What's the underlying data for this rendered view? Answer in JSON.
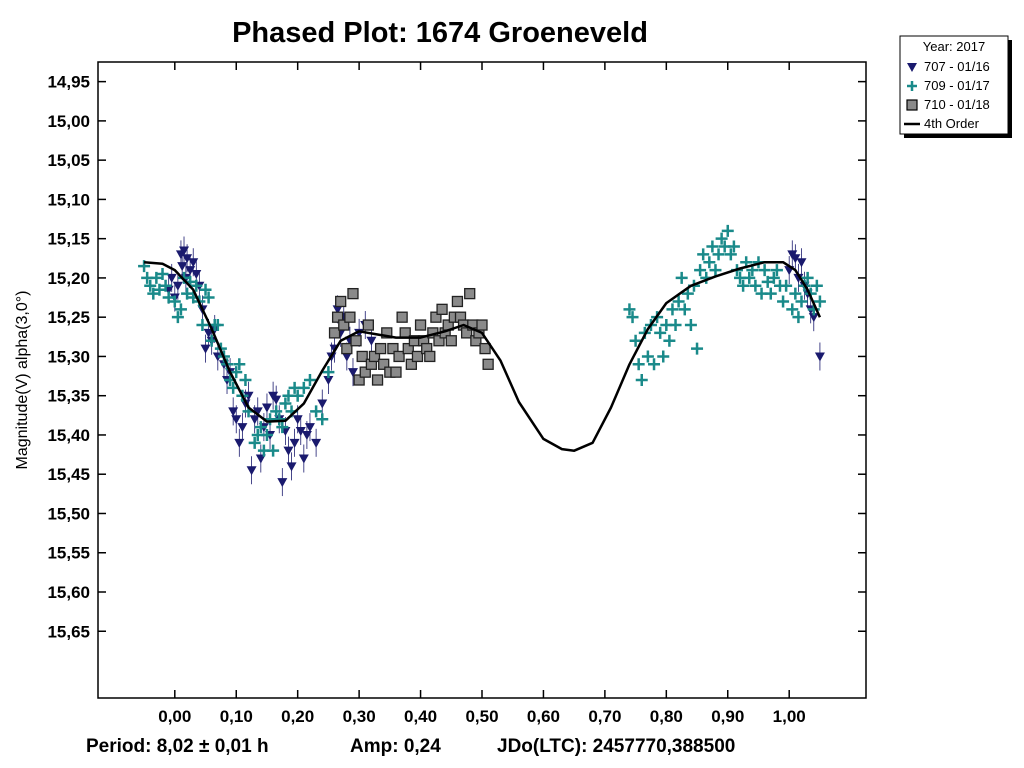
{
  "chart_data": {
    "type": "scatter",
    "title": "Phased Plot: 1674 Groeneveld",
    "ylabel": "Magnitude(V) alpha(3,0°)",
    "xlabel": "",
    "xlim": [
      -0.125,
      1.125
    ],
    "ylim": [
      15.735,
      14.925
    ],
    "y_inverted": true,
    "x_ticks": [
      "0,00",
      "0,10",
      "0,20",
      "0,30",
      "0,40",
      "0,50",
      "0,60",
      "0,70",
      "0,80",
      "0,90",
      "1,00"
    ],
    "x_tick_values": [
      0,
      0.1,
      0.2,
      0.3,
      0.4,
      0.5,
      0.6,
      0.7,
      0.8,
      0.9,
      1.0
    ],
    "y_ticks": [
      "14,95",
      "15,00",
      "15,05",
      "15,10",
      "15,15",
      "15,20",
      "15,25",
      "15,30",
      "15,35",
      "15,40",
      "15,45",
      "15,50",
      "15,55",
      "15,60",
      "15,65"
    ],
    "y_tick_values": [
      14.95,
      15.0,
      15.05,
      15.1,
      15.15,
      15.2,
      15.25,
      15.3,
      15.35,
      15.4,
      15.45,
      15.5,
      15.55,
      15.6,
      15.65
    ],
    "legend": {
      "position": "top-right",
      "title": "Year: 2017",
      "entries": [
        "707 - 01/16",
        "709 - 01/17",
        "710 - 01/18",
        "4th Order"
      ]
    },
    "footer": {
      "period": "Period: 8,02 ± 0,01 h",
      "amplitude": "Amp: 0,24",
      "epoch": "JDo(LTC): 2457770,388500"
    },
    "series": [
      {
        "name": "707 - 01/16",
        "marker": "triangle-down",
        "color": "#1a1a6e",
        "points": [
          [
            -0.01,
            15.215
          ],
          [
            -0.005,
            15.2
          ],
          [
            0.0,
            15.225
          ],
          [
            0.005,
            15.21
          ],
          [
            0.01,
            15.17
          ],
          [
            0.012,
            15.185
          ],
          [
            0.015,
            15.165
          ],
          [
            0.018,
            15.2
          ],
          [
            0.02,
            15.175
          ],
          [
            0.025,
            15.19
          ],
          [
            0.03,
            15.18
          ],
          [
            0.035,
            15.195
          ],
          [
            0.04,
            15.21
          ],
          [
            0.045,
            15.24
          ],
          [
            0.05,
            15.29
          ],
          [
            0.055,
            15.27
          ],
          [
            0.06,
            15.28
          ],
          [
            0.065,
            15.265
          ],
          [
            0.07,
            15.3
          ],
          [
            0.08,
            15.31
          ],
          [
            0.085,
            15.33
          ],
          [
            0.09,
            15.32
          ],
          [
            0.095,
            15.37
          ],
          [
            0.1,
            15.38
          ],
          [
            0.105,
            15.41
          ],
          [
            0.11,
            15.39
          ],
          [
            0.115,
            15.36
          ],
          [
            0.12,
            15.35
          ],
          [
            0.125,
            15.445
          ],
          [
            0.13,
            15.38
          ],
          [
            0.135,
            15.37
          ],
          [
            0.14,
            15.43
          ],
          [
            0.145,
            15.39
          ],
          [
            0.15,
            15.365
          ],
          [
            0.155,
            15.4
          ],
          [
            0.16,
            15.35
          ],
          [
            0.165,
            15.355
          ],
          [
            0.17,
            15.38
          ],
          [
            0.175,
            15.46
          ],
          [
            0.18,
            15.395
          ],
          [
            0.185,
            15.42
          ],
          [
            0.19,
            15.44
          ],
          [
            0.195,
            15.41
          ],
          [
            0.2,
            15.38
          ],
          [
            0.205,
            15.395
          ],
          [
            0.21,
            15.43
          ],
          [
            0.215,
            15.4
          ],
          [
            0.22,
            15.39
          ],
          [
            0.23,
            15.41
          ],
          [
            0.24,
            15.36
          ],
          [
            0.25,
            15.33
          ],
          [
            0.255,
            15.3
          ],
          [
            0.26,
            15.29
          ],
          [
            0.265,
            15.24
          ],
          [
            0.27,
            15.27
          ],
          [
            0.275,
            15.25
          ],
          [
            0.28,
            15.3
          ],
          [
            0.285,
            15.28
          ],
          [
            0.29,
            15.32
          ],
          [
            0.3,
            15.27
          ],
          [
            0.31,
            15.26
          ],
          [
            0.32,
            15.28
          ],
          [
            1.0,
            15.19
          ],
          [
            1.005,
            15.17
          ],
          [
            1.01,
            15.175
          ],
          [
            1.015,
            15.2
          ],
          [
            1.02,
            15.18
          ],
          [
            1.025,
            15.21
          ],
          [
            1.03,
            15.22
          ],
          [
            1.035,
            15.24
          ],
          [
            1.04,
            15.25
          ],
          [
            1.05,
            15.3
          ]
        ]
      },
      {
        "name": "709 - 01/17",
        "marker": "plus",
        "color": "#1a8a8a",
        "points": [
          [
            -0.05,
            15.185
          ],
          [
            -0.045,
            15.2
          ],
          [
            -0.04,
            15.21
          ],
          [
            -0.035,
            15.22
          ],
          [
            -0.03,
            15.2
          ],
          [
            -0.025,
            15.215
          ],
          [
            -0.02,
            15.195
          ],
          [
            -0.015,
            15.21
          ],
          [
            -0.01,
            15.225
          ],
          [
            0.0,
            15.23
          ],
          [
            0.005,
            15.25
          ],
          [
            0.01,
            15.24
          ],
          [
            0.015,
            15.2
          ],
          [
            0.02,
            15.22
          ],
          [
            0.025,
            15.205
          ],
          [
            0.03,
            15.225
          ],
          [
            0.035,
            15.21
          ],
          [
            0.04,
            15.23
          ],
          [
            0.045,
            15.26
          ],
          [
            0.05,
            15.215
          ],
          [
            0.055,
            15.225
          ],
          [
            0.06,
            15.28
          ],
          [
            0.065,
            15.26
          ],
          [
            0.07,
            15.26
          ],
          [
            0.075,
            15.29
          ],
          [
            0.08,
            15.3
          ],
          [
            0.085,
            15.31
          ],
          [
            0.09,
            15.33
          ],
          [
            0.095,
            15.34
          ],
          [
            0.1,
            15.32
          ],
          [
            0.105,
            15.31
          ],
          [
            0.11,
            15.35
          ],
          [
            0.115,
            15.33
          ],
          [
            0.12,
            15.37
          ],
          [
            0.13,
            15.41
          ],
          [
            0.135,
            15.4
          ],
          [
            0.14,
            15.39
          ],
          [
            0.145,
            15.42
          ],
          [
            0.15,
            15.4
          ],
          [
            0.155,
            15.38
          ],
          [
            0.16,
            15.42
          ],
          [
            0.165,
            15.37
          ],
          [
            0.17,
            15.38
          ],
          [
            0.175,
            15.39
          ],
          [
            0.18,
            15.36
          ],
          [
            0.185,
            15.35
          ],
          [
            0.19,
            15.37
          ],
          [
            0.195,
            15.34
          ],
          [
            0.2,
            15.35
          ],
          [
            0.21,
            15.34
          ],
          [
            0.22,
            15.33
          ],
          [
            0.23,
            15.37
          ],
          [
            0.24,
            15.38
          ],
          [
            0.25,
            15.32
          ],
          [
            0.74,
            15.24
          ],
          [
            0.745,
            15.25
          ],
          [
            0.75,
            15.28
          ],
          [
            0.755,
            15.31
          ],
          [
            0.76,
            15.33
          ],
          [
            0.765,
            15.27
          ],
          [
            0.77,
            15.3
          ],
          [
            0.775,
            15.26
          ],
          [
            0.78,
            15.31
          ],
          [
            0.785,
            15.25
          ],
          [
            0.79,
            15.27
          ],
          [
            0.795,
            15.3
          ],
          [
            0.8,
            15.26
          ],
          [
            0.805,
            15.28
          ],
          [
            0.81,
            15.24
          ],
          [
            0.815,
            15.26
          ],
          [
            0.82,
            15.23
          ],
          [
            0.825,
            15.2
          ],
          [
            0.83,
            15.24
          ],
          [
            0.835,
            15.22
          ],
          [
            0.84,
            15.26
          ],
          [
            0.845,
            15.21
          ],
          [
            0.85,
            15.29
          ],
          [
            0.855,
            15.19
          ],
          [
            0.86,
            15.17
          ],
          [
            0.865,
            15.2
          ],
          [
            0.87,
            15.18
          ],
          [
            0.875,
            15.16
          ],
          [
            0.88,
            15.19
          ],
          [
            0.885,
            15.17
          ],
          [
            0.89,
            15.15
          ],
          [
            0.895,
            15.16
          ],
          [
            0.9,
            15.14
          ],
          [
            0.905,
            15.17
          ],
          [
            0.91,
            15.16
          ],
          [
            0.915,
            15.19
          ],
          [
            0.92,
            15.2
          ],
          [
            0.925,
            15.21
          ],
          [
            0.93,
            15.18
          ],
          [
            0.935,
            15.2
          ],
          [
            0.94,
            15.19
          ],
          [
            0.945,
            15.21
          ],
          [
            0.95,
            15.18
          ],
          [
            0.955,
            15.22
          ],
          [
            0.96,
            15.19
          ],
          [
            0.965,
            15.205
          ],
          [
            0.97,
            15.22
          ],
          [
            0.975,
            15.2
          ],
          [
            0.98,
            15.19
          ],
          [
            0.985,
            15.21
          ],
          [
            0.99,
            15.23
          ],
          [
            0.995,
            15.21
          ],
          [
            1.005,
            15.24
          ],
          [
            1.01,
            15.22
          ],
          [
            1.015,
            15.25
          ],
          [
            1.02,
            15.23
          ],
          [
            1.025,
            15.21
          ],
          [
            1.03,
            15.2
          ],
          [
            1.035,
            15.22
          ],
          [
            1.04,
            15.24
          ],
          [
            1.045,
            15.21
          ],
          [
            1.05,
            15.23
          ]
        ]
      },
      {
        "name": "710 - 01/18",
        "marker": "square",
        "color": "#8a8a8a",
        "points": [
          [
            0.26,
            15.27
          ],
          [
            0.265,
            15.25
          ],
          [
            0.27,
            15.23
          ],
          [
            0.275,
            15.26
          ],
          [
            0.28,
            15.29
          ],
          [
            0.285,
            15.25
          ],
          [
            0.29,
            15.22
          ],
          [
            0.295,
            15.28
          ],
          [
            0.3,
            15.33
          ],
          [
            0.305,
            15.3
          ],
          [
            0.31,
            15.32
          ],
          [
            0.315,
            15.26
          ],
          [
            0.32,
            15.31
          ],
          [
            0.325,
            15.3
          ],
          [
            0.33,
            15.33
          ],
          [
            0.335,
            15.29
          ],
          [
            0.34,
            15.31
          ],
          [
            0.345,
            15.27
          ],
          [
            0.35,
            15.32
          ],
          [
            0.355,
            15.29
          ],
          [
            0.36,
            15.32
          ],
          [
            0.365,
            15.3
          ],
          [
            0.37,
            15.25
          ],
          [
            0.375,
            15.27
          ],
          [
            0.38,
            15.29
          ],
          [
            0.385,
            15.31
          ],
          [
            0.39,
            15.28
          ],
          [
            0.395,
            15.3
          ],
          [
            0.4,
            15.26
          ],
          [
            0.405,
            15.28
          ],
          [
            0.41,
            15.29
          ],
          [
            0.415,
            15.3
          ],
          [
            0.42,
            15.27
          ],
          [
            0.425,
            15.25
          ],
          [
            0.43,
            15.28
          ],
          [
            0.435,
            15.24
          ],
          [
            0.44,
            15.27
          ],
          [
            0.445,
            15.26
          ],
          [
            0.45,
            15.28
          ],
          [
            0.455,
            15.25
          ],
          [
            0.46,
            15.23
          ],
          [
            0.465,
            15.25
          ],
          [
            0.47,
            15.26
          ],
          [
            0.475,
            15.27
          ],
          [
            0.48,
            15.22
          ],
          [
            0.485,
            15.26
          ],
          [
            0.49,
            15.28
          ],
          [
            0.495,
            15.27
          ],
          [
            0.5,
            15.26
          ],
          [
            0.505,
            15.29
          ],
          [
            0.51,
            15.31
          ]
        ]
      }
    ],
    "fit": {
      "name": "4th Order",
      "color": "#000000",
      "points": [
        [
          -0.05,
          15.18
        ],
        [
          -0.02,
          15.182
        ],
        [
          0.0,
          15.19
        ],
        [
          0.03,
          15.215
        ],
        [
          0.06,
          15.265
        ],
        [
          0.09,
          15.32
        ],
        [
          0.12,
          15.365
        ],
        [
          0.15,
          15.383
        ],
        [
          0.18,
          15.382
        ],
        [
          0.21,
          15.36
        ],
        [
          0.24,
          15.318
        ],
        [
          0.27,
          15.28
        ],
        [
          0.3,
          15.268
        ],
        [
          0.33,
          15.272
        ],
        [
          0.36,
          15.276
        ],
        [
          0.4,
          15.276
        ],
        [
          0.44,
          15.268
        ],
        [
          0.47,
          15.26
        ],
        [
          0.5,
          15.27
        ],
        [
          0.53,
          15.305
        ],
        [
          0.56,
          15.358
        ],
        [
          0.6,
          15.405
        ],
        [
          0.63,
          15.418
        ],
        [
          0.65,
          15.42
        ],
        [
          0.68,
          15.41
        ],
        [
          0.71,
          15.365
        ],
        [
          0.74,
          15.31
        ],
        [
          0.77,
          15.265
        ],
        [
          0.8,
          15.232
        ],
        [
          0.84,
          15.21
        ],
        [
          0.88,
          15.198
        ],
        [
          0.92,
          15.188
        ],
        [
          0.96,
          15.18
        ],
        [
          0.99,
          15.18
        ],
        [
          1.01,
          15.19
        ],
        [
          1.03,
          15.215
        ],
        [
          1.05,
          15.25
        ]
      ]
    }
  }
}
